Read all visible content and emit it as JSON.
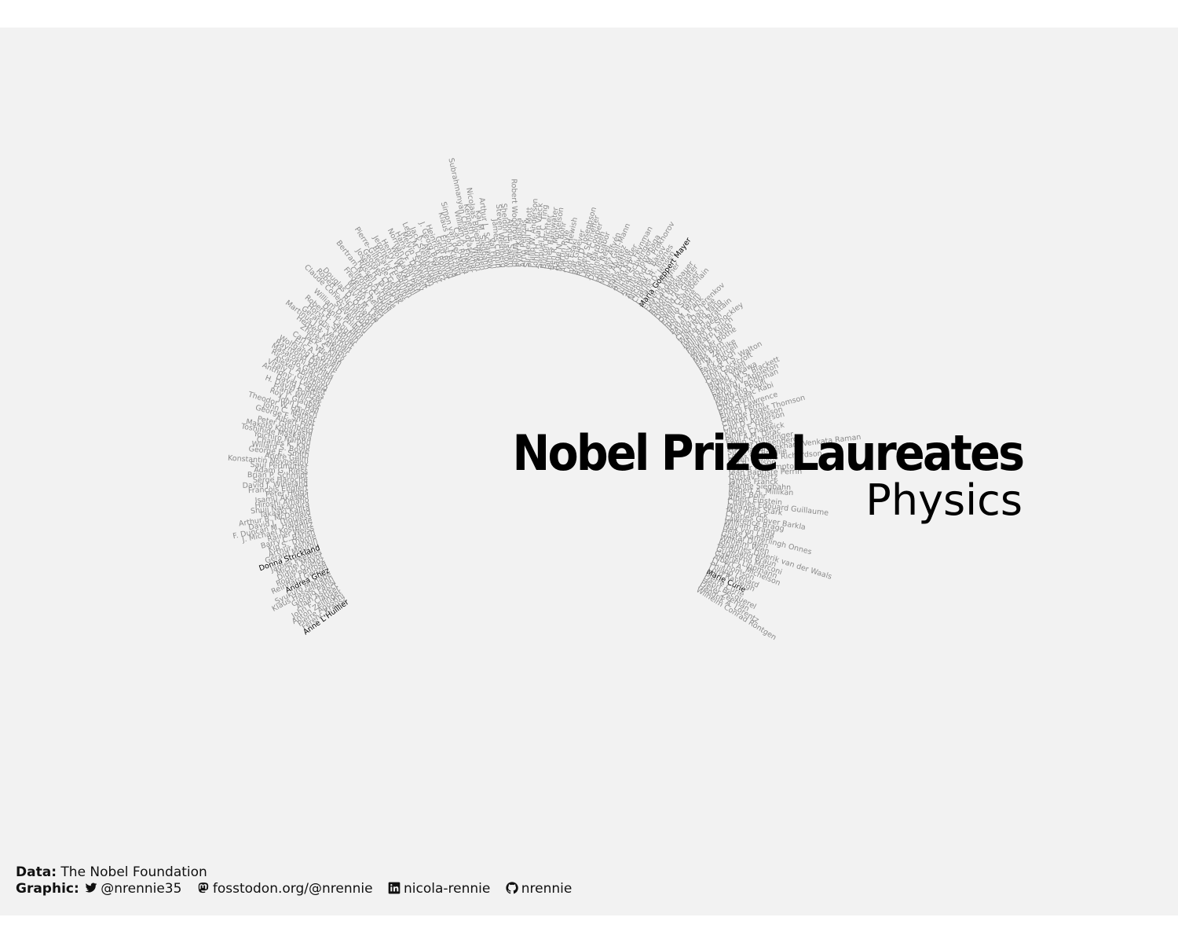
{
  "title": "Nobel Prize Laureates",
  "subtitle": "Physics",
  "caption": {
    "data_label": "Data",
    "data_source": "The Nobel Foundation",
    "graphic_label": "Graphic",
    "twitter": "@nrennie35",
    "mastodon": "fosstodon.org/@nrennie",
    "linkedin": "nicola-rennie",
    "github": "nrennie"
  },
  "colors": {
    "background": "#f2f2f2",
    "laureate": "#8a8a8a",
    "highlight": "#000000"
  },
  "chart_data": {
    "type": "radial-text",
    "description_values": "laureate names arranged in a circular arc in chronological order, women highlighted",
    "names": [
      "Wilhelm Conrad Röntgen",
      "Hendrik A. Lorentz",
      "Pieter Zeeman",
      "Henri Becquerel",
      "Pierre Curie",
      "Marie Curie",
      "Lord Rayleigh",
      "Philipp Lenard",
      "J.J. Thomson",
      "Albert A. Michelson",
      "Gabriel Lippmann",
      "Guglielmo Marconi",
      "Ferdinand Braun",
      "Johannes Diderik van der Waals",
      "Wilhelm Wien",
      "Gustaf Dalén",
      "Heike Kamerlingh Onnes",
      "Max von Laue",
      "William Bragg",
      "Lawrence Bragg",
      "Charles Glover Barkla",
      "Max Planck",
      "Johannes Stark",
      "Charles Edouard Guillaume",
      "Albert Einstein",
      "Niels Bohr",
      "Robert A. Millikan",
      "Manne Siegbahn",
      "James Franck",
      "Gustav Hertz",
      "Jean Baptiste Perrin",
      "Arthur H. Compton",
      "C.T.R. Wilson",
      "Owen Willans Richardson",
      "Louis de Broglie",
      "Sir Chandrasekhara Venkata Raman",
      "Werner Heisenberg",
      "Erwin Schrödinger",
      "Paul A.M. Dirac",
      "James Chadwick",
      "Victor F. Hess",
      "Carl D. Anderson",
      "Clinton Davisson",
      "George Paget Thomson",
      "Enrico Fermi",
      "Ernest Lawrence",
      "Otto Stern",
      "Isidor Isaac Rabi",
      "Wolfgang Pauli",
      "Percy W. Bridgman",
      "Edward V. Appleton",
      "Patrick M.S. Blackett",
      "Hideki Yukawa",
      "Cecil Powell",
      "John Cockcroft",
      "Ernest T.S. Walton",
      "Felix Bloch",
      "E. M. Purcell",
      "Frits Zernike",
      "Max Born",
      "Walther Bothe",
      "Willis E. Lamb",
      "Polykarp Kusch",
      "William B. Shockley",
      "John Bardeen",
      "Walter H. Brattain",
      "Chen Ning Yang",
      "Tsung-Dao Lee",
      "Pavel A. Cherenkov",
      "Il'ja M. Frank",
      "Igor Y. Tamm",
      "Emilio Segrè",
      "Owen Chamberlain",
      "Donald A. Glaser",
      "Robert Hofstadter",
      "Rudolf Mössbauer",
      "Lev Landau",
      "Eugene Wigner",
      "Maria Goeppert Mayer",
      "J. Hans D. Jensen",
      "Charles H. Townes",
      "Nicolay G. Basov",
      "Aleksandr M. Prokhorov",
      "Sin-Itiro Tomonaga",
      "Julian Schwinger",
      "Richard P. Feynman",
      "Alfred Kastler",
      "Hans Bethe",
      "Luis Alvarez",
      "Murray Gell-Mann",
      "Hannes Alfvén",
      "Louis Néel",
      "Dennis Gabor",
      "John Bardeen",
      "Leon N. Cooper",
      "Robert Schrieffer",
      "Brian D. Josephson",
      "Ivar Giaever",
      "Leo Esaki",
      "Antony Hewish",
      "Martin Ryle",
      "Aage N. Bohr",
      "Ben R. Mottelson",
      "James Rainwater",
      "Burton Richter",
      "Samuel C.C. Ting",
      "John H. van Vleck",
      "Philip W. Anderson",
      "Sir Nevill F. Mott",
      "Arno Penzias",
      "Pyotr Kapitsa",
      "Robert Woodrow Wilson",
      "Abdus Salam",
      "Sheldon Glashow",
      "Steven Weinberg",
      "James Cronin",
      "Val Fitch",
      "Arthur L. Schawlow",
      "Kai M. Siegbahn",
      "Nicolaas Bloembergen",
      "Kenneth G. Wilson",
      "Subrahmanyan Chandrasekhar",
      "William A. Fowler",
      "Carlo Rubbia",
      "Simon van der Meer",
      "Klaus von Klitzing",
      "Ernst Ruska",
      "Gerd Binnig",
      "Heinrich Rohrer",
      "J. Georg Bednorz",
      "K. Alex Müller",
      "Jack Steinberger",
      "Leon M. Lederman",
      "Melvin Schwartz",
      "Hans G. Dehmelt",
      "Norman F. Ramsey",
      "Wolfgang Paul",
      "Henry W. Kendall",
      "Jerome I. Friedman",
      "Richard E. Taylor",
      "Pierre-Gilles de Gennes",
      "Georges Charpak",
      "Joseph H. Taylor Jr.",
      "Russell A. Hulse",
      "Bertram N. Brockhouse",
      "Clifford G. Shull",
      "Frederick Reines",
      "Martin L. Perl",
      "David M. Lee",
      "Douglas D. Osheroff",
      "Robert C. Richardson",
      "Claude Cohen-Tannoudji",
      "Steven Chu",
      "William D. Phillips",
      "Daniel C. Tsui",
      "Robert B. Laughlin",
      "Horst L. Störmer",
      "Gerardus 't Hooft",
      "Martinus J.G. Veltman",
      "Herbert Kroemer",
      "Zhores Alferov",
      "Jack S. Kilby",
      "Carl E. Wieman",
      "Eric A. Cornell",
      "Wolfgang Ketterle",
      "Raymond Davis Jr.",
      "Masatoshi Koshiba",
      "Riccardo Giacconi",
      "Alexei Abrikosov",
      "Vitaly L. Ginzburg",
      "Anthony J. Leggett",
      "David J. Gross",
      "H. David Politzer",
      "Frank Wilczek",
      "Roy J. Glauber",
      "John L. Hall",
      "Theodor W. Hänsch",
      "John C. Mather",
      "George F. Smoot",
      "Albert Fert",
      "Peter Grünberg",
      "Makoto Kobayashi",
      "Toshihide Maskawa",
      "Yoichiro Nambu",
      "Charles K. Kao",
      "Willard S. Boyle",
      "George E. Smith",
      "Andre Geim",
      "Konstantin Novoselov",
      "Saul Perlmutter",
      "Adam G. Riess",
      "Brian P. Schmidt",
      "Serge Haroche",
      "David J. Wineland",
      "François Englert",
      "Peter Higgs",
      "Isamu Akasaki",
      "Hiroshi Amano",
      "Shuji Nakamura",
      "Takaaki Kajita",
      "Arthur B. McDonald",
      "David J. Thouless",
      "F. Duncan M. Haldane",
      "J. Michael Kosterlitz",
      "Rainer Weiss",
      "Barry C. Barish",
      "Kip S. Thorne",
      "Arthur Ashkin",
      "Gérard Mourou",
      "Donna Strickland",
      "James Peebles",
      "Michel Mayor",
      "Didier Queloz",
      "Roger Penrose",
      "Reinhard Genzel",
      "Andrea Ghez",
      "Syukuro Manabe",
      "Klaus Hasselmann",
      "Giorgio Parisi",
      "Alain Aspect",
      "John F. Clauser",
      "Anton Zeilinger",
      "Pierre Agostini",
      "Ferenc Krausz",
      "Anne L'Huillier"
    ],
    "highlighted": [
      "Marie Curie",
      "Maria Goeppert Mayer",
      "Donna Strickland",
      "Andrea Ghez",
      "Anne L'Huillier"
    ],
    "arc_start_deg": -32,
    "arc_end_deg": 216
  }
}
